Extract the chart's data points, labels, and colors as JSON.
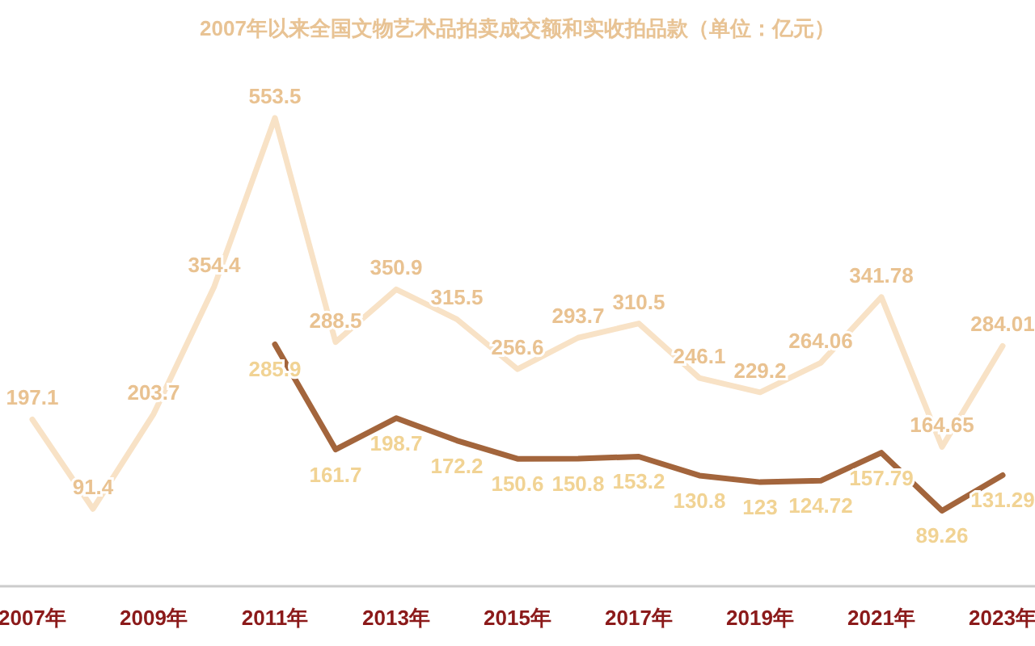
{
  "chart_data": {
    "type": "line",
    "title": "2007年以来全国文物艺术品拍卖成交额和实收拍品款（单位：亿元）",
    "categories": [
      "2007年",
      null,
      "2009年",
      null,
      "2011年",
      null,
      "2013年",
      null,
      "2015年",
      null,
      "2017年",
      null,
      "2019年",
      null,
      "2021年",
      null,
      "2023年"
    ],
    "series": [
      {
        "color": "#f8e2c6",
        "values": [
          197.1,
          91.4,
          203.7,
          354.4,
          553.5,
          288.5,
          350.9,
          315.5,
          256.6,
          293.7,
          310.5,
          246.1,
          229.2,
          264.06,
          341.78,
          164.65,
          284.01
        ]
      },
      {
        "color": "#a3653c",
        "values": [
          null,
          null,
          null,
          null,
          285.9,
          161.7,
          198.7,
          172.2,
          150.6,
          150.8,
          153.2,
          130.8,
          123,
          124.72,
          157.79,
          89.26,
          131.29
        ]
      }
    ],
    "data_labels": true,
    "line_style": "solid"
  }
}
